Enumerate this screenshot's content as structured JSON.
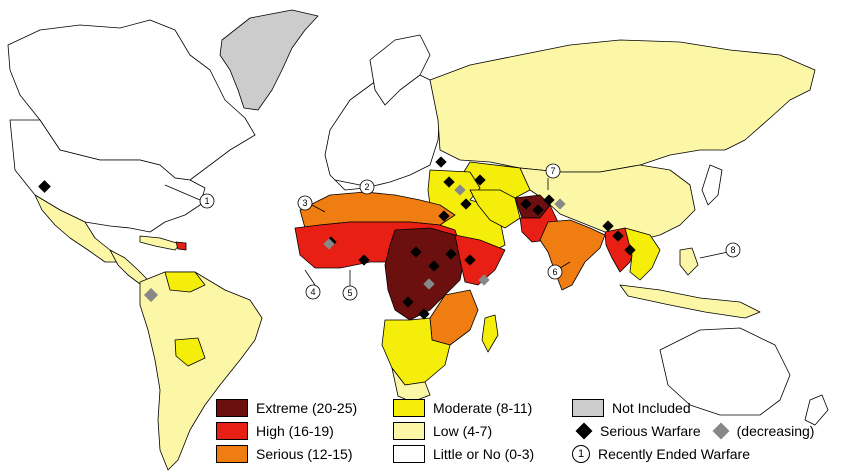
{
  "legend": {
    "extreme": {
      "label": "Extreme (20-25)",
      "color": "#6b0f0f"
    },
    "high": {
      "label": "High (16-19)",
      "color": "#e81f15"
    },
    "serious": {
      "label": "Serious (12-15)",
      "color": "#f07d12"
    },
    "moderate": {
      "label": "Moderate (8-11)",
      "color": "#f4ee0a"
    },
    "low": {
      "label": "Low (4-7)",
      "color": "#fcf7a6"
    },
    "little": {
      "label": "Little or No (0-3)",
      "color": "#ffffff"
    },
    "not_included": {
      "label": "Not Included",
      "color": "#cccccc"
    },
    "serious_warfare": {
      "label": "Serious Warfare",
      "color": "#000000"
    },
    "decreasing": {
      "label": "(decreasing)",
      "color": "#888888"
    },
    "recently_ended": {
      "label": "Recently Ended Warfare",
      "symbol": "1"
    }
  },
  "callouts": [
    "1",
    "2",
    "3",
    "4",
    "5",
    "6",
    "7",
    "8"
  ]
}
